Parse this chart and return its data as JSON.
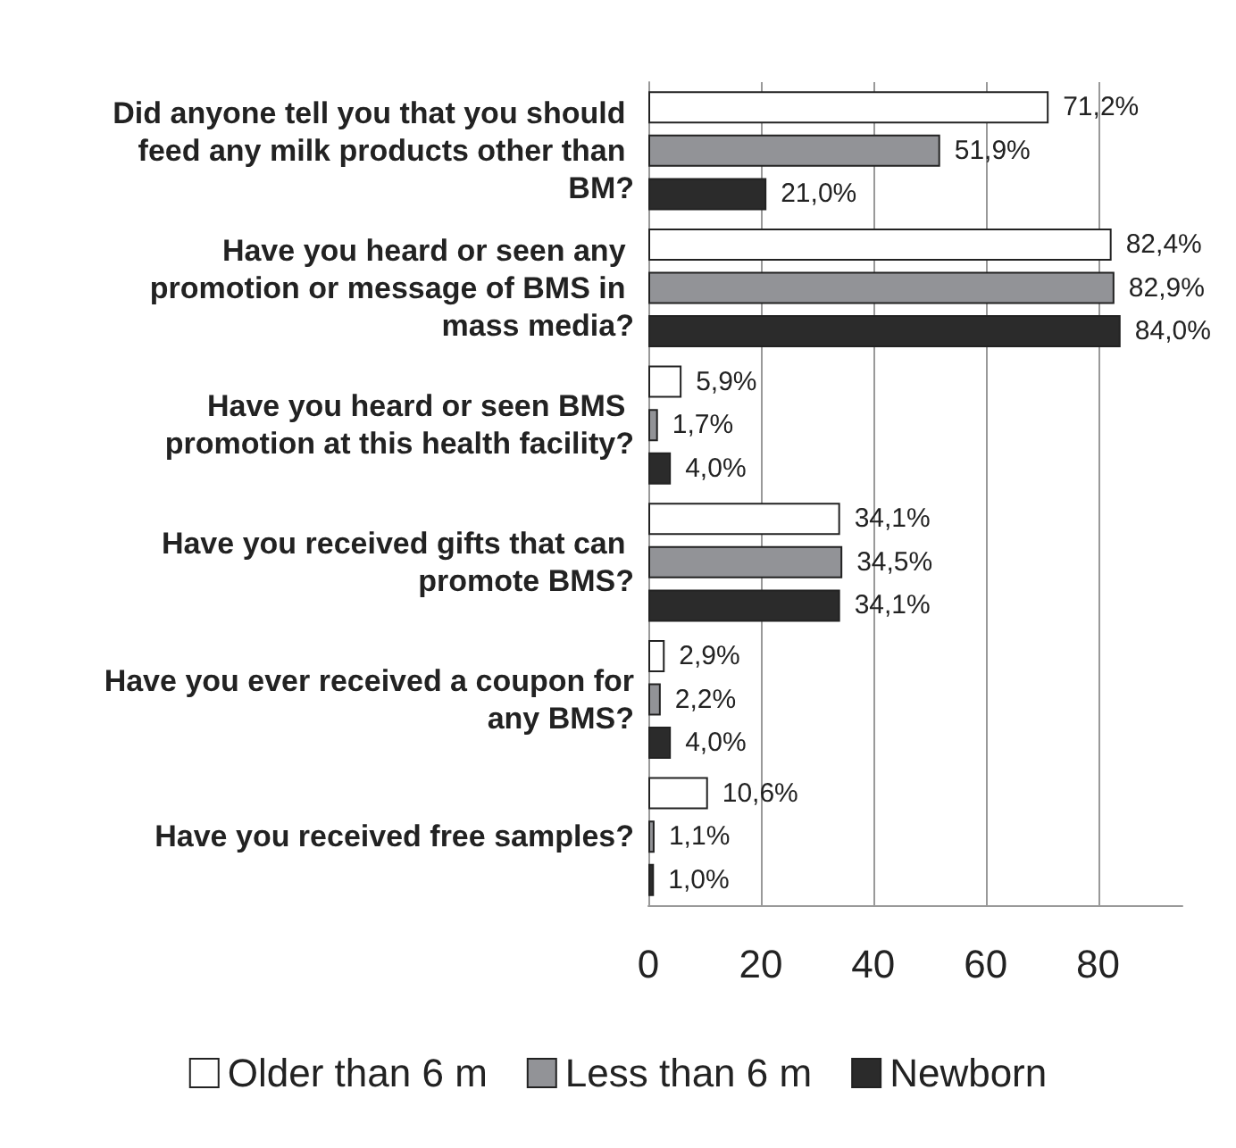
{
  "chart_data": {
    "type": "bar",
    "orientation": "horizontal",
    "categories": [
      "Did anyone tell you that you should feed any milk products other than BM?",
      "Have you heard or seen any promotion or message of BMS in mass media?",
      "Have you heard or seen BMS promotion at this health facility?",
      "Have you received gifts that can promote BMS?",
      "Have you ever received a coupon for any BMS?",
      "Have you received free samples?"
    ],
    "series": [
      {
        "name": "Older than 6 m",
        "color": "#ffffff",
        "values": [
          71.2,
          82.4,
          5.9,
          34.1,
          2.9,
          10.6
        ],
        "value_labels": [
          "71,2%",
          "82,4%",
          "5,9%",
          "34,1%",
          "2,9%",
          "10,6%"
        ]
      },
      {
        "name": "Less than 6 m",
        "color": "#929397",
        "values": [
          51.9,
          82.9,
          1.7,
          34.5,
          2.2,
          1.1
        ],
        "value_labels": [
          "51,9%",
          "82,9%",
          "1,7%",
          "34,5%",
          "2,2%",
          "1,1%"
        ]
      },
      {
        "name": "Newborn",
        "color": "#2b2b2b",
        "values": [
          21.0,
          84.0,
          4.0,
          34.1,
          4.0,
          1.0
        ],
        "value_labels": [
          "21,0%",
          "84,0%",
          "4,0%",
          "34,1%",
          "4,0%",
          "1,0%"
        ]
      }
    ],
    "xlim": [
      0,
      95
    ],
    "xticks": [
      0,
      20,
      40,
      60,
      80
    ],
    "grid": "x",
    "legend": "bottom"
  }
}
